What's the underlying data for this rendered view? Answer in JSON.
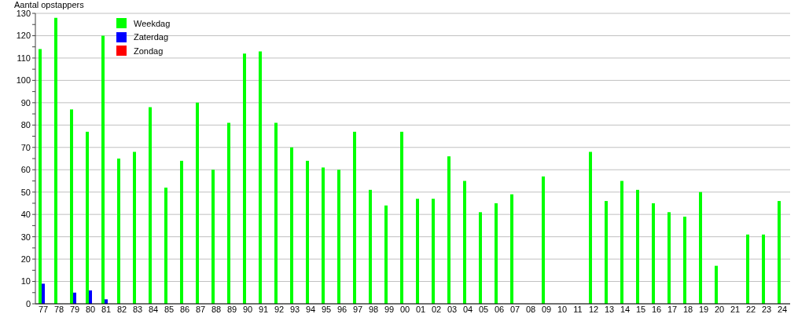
{
  "chart_data": {
    "type": "bar",
    "ylabel": "Aantal opstappers",
    "categories": [
      "77",
      "78",
      "79",
      "80",
      "81",
      "82",
      "83",
      "84",
      "85",
      "86",
      "87",
      "88",
      "89",
      "90",
      "91",
      "92",
      "93",
      "94",
      "95",
      "96",
      "97",
      "98",
      "99",
      "00",
      "01",
      "02",
      "03",
      "04",
      "05",
      "06",
      "07",
      "08",
      "09",
      "10",
      "11",
      "12",
      "13",
      "14",
      "15",
      "16",
      "17",
      "18",
      "19",
      "20",
      "21",
      "22",
      "23",
      "24"
    ],
    "series": [
      {
        "name": "Weekdag",
        "color": "#00ff00",
        "values": [
          114,
          128,
          87,
          77,
          120,
          65,
          68,
          88,
          52,
          64,
          90,
          60,
          81,
          112,
          113,
          81,
          70,
          64,
          61,
          60,
          77,
          51,
          44,
          77,
          47,
          47,
          66,
          55,
          41,
          45,
          49,
          null,
          57,
          null,
          null,
          68,
          46,
          55,
          51,
          45,
          41,
          39,
          50,
          17,
          null,
          31,
          31,
          46
        ]
      },
      {
        "name": "Zaterdag",
        "color": "#0000ff",
        "values": [
          9,
          null,
          5,
          6,
          2,
          null,
          null,
          null,
          null,
          null,
          null,
          null,
          null,
          null,
          null,
          null,
          null,
          null,
          null,
          null,
          null,
          null,
          null,
          null,
          null,
          null,
          null,
          null,
          null,
          null,
          null,
          null,
          null,
          null,
          null,
          null,
          null,
          null,
          null,
          null,
          null,
          null,
          null,
          null,
          null,
          null,
          null,
          null
        ]
      },
      {
        "name": "Zondag",
        "color": "#ff0000",
        "values": [
          null,
          null,
          null,
          null,
          null,
          null,
          null,
          null,
          null,
          null,
          null,
          null,
          null,
          null,
          null,
          null,
          null,
          null,
          null,
          null,
          null,
          null,
          null,
          null,
          null,
          null,
          null,
          null,
          null,
          null,
          null,
          null,
          null,
          null,
          null,
          null,
          null,
          null,
          null,
          null,
          null,
          null,
          null,
          null,
          null,
          null,
          null,
          null
        ]
      }
    ],
    "ylim": [
      0,
      130
    ],
    "yticks": [
      0,
      {
        "value": 5,
        "label": null
      },
      10,
      {
        "value": 15,
        "label": null
      },
      20,
      {
        "value": 25,
        "label": null
      },
      30,
      {
        "value": 35,
        "label": null
      },
      40,
      {
        "value": 45,
        "label": null
      },
      50,
      {
        "value": 55,
        "label": null
      },
      60,
      {
        "value": 65,
        "label": null
      },
      70,
      {
        "value": 75,
        "label": null
      },
      80,
      {
        "value": 85,
        "label": null
      },
      90,
      {
        "value": 95,
        "label": null
      },
      100,
      {
        "value": 105,
        "label": null
      },
      110,
      {
        "value": 115,
        "label": null
      },
      120,
      {
        "value": 125,
        "label": null
      },
      130
    ],
    "grid": "y",
    "legend": "top left"
  }
}
